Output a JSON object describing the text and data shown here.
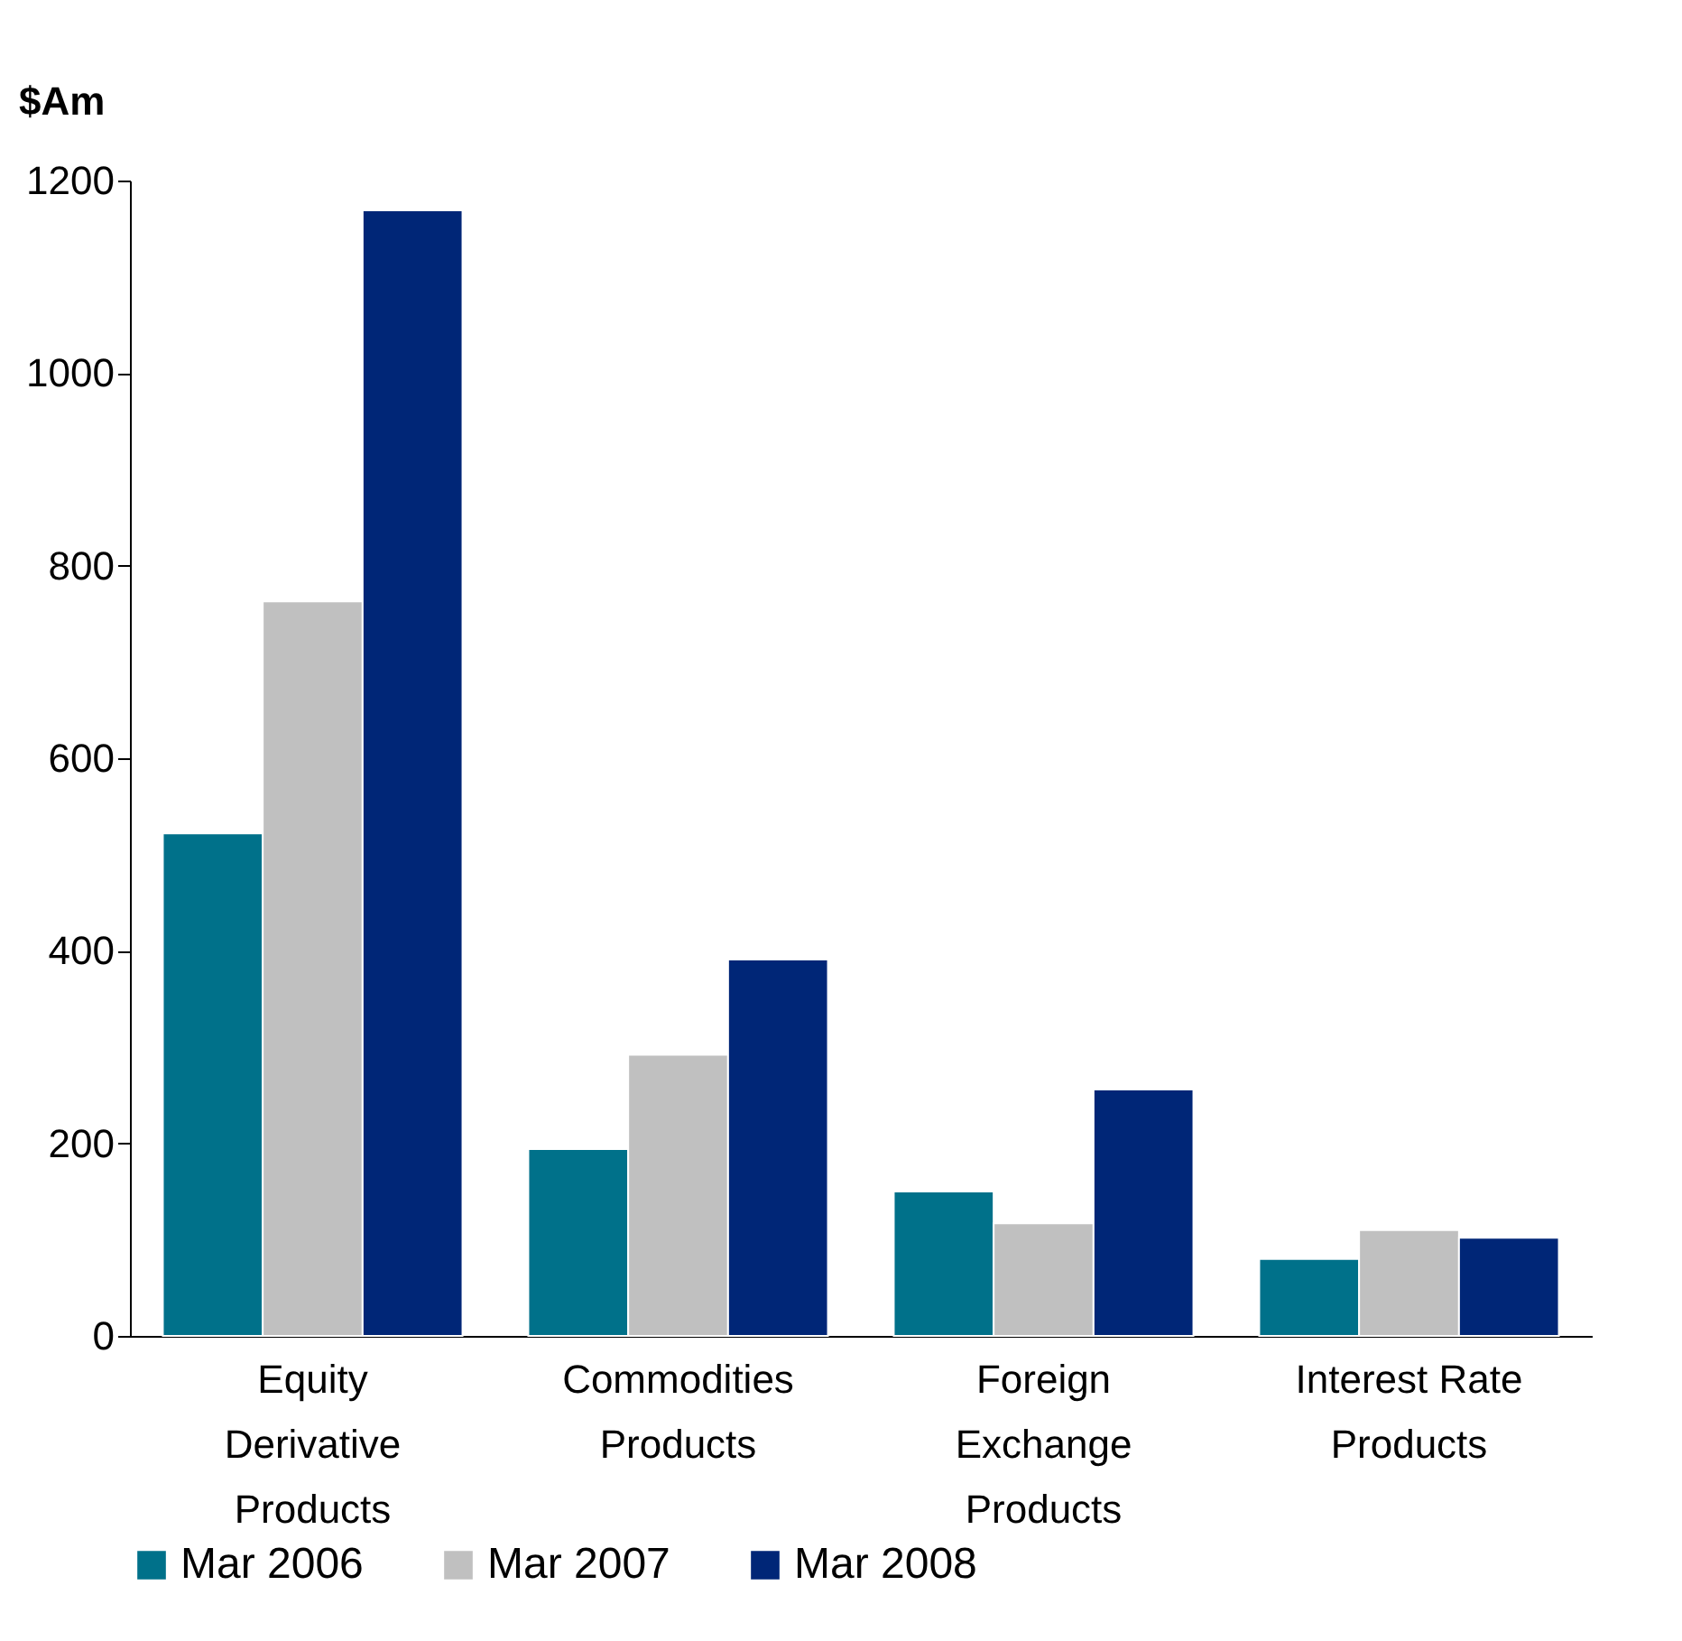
{
  "chart_data": {
    "type": "bar",
    "ylabel": "$Am",
    "categories": [
      "Equity Derivative Products",
      "Commodities Products",
      "Foreign Exchange Products",
      "Interest Rate Products"
    ],
    "series": [
      {
        "name": "Mar 2006",
        "color": "#00718a",
        "values": [
          522,
          194,
          150,
          80
        ]
      },
      {
        "name": "Mar 2007",
        "color": "#c0c0c0",
        "values": [
          763,
          292,
          117,
          110
        ]
      },
      {
        "name": "Mar 2008",
        "color": "#002677",
        "values": [
          1169,
          391,
          256,
          102
        ]
      }
    ],
    "ylim": [
      0,
      1200
    ],
    "yticks": [
      0,
      200,
      400,
      600,
      800,
      1000,
      1200
    ],
    "grid": false,
    "legend": "bottom"
  }
}
